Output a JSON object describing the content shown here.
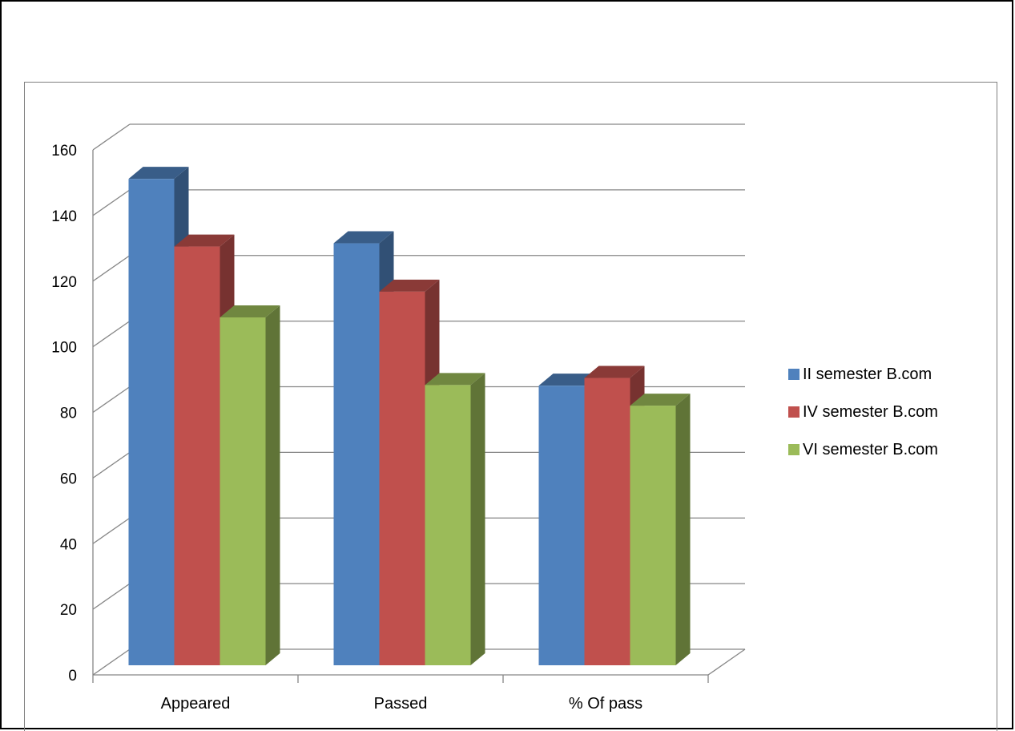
{
  "chart_data": {
    "type": "bar",
    "title": "",
    "xlabel": "",
    "ylabel": "",
    "ylim": [
      0,
      160
    ],
    "yticks": [
      0,
      20,
      40,
      60,
      80,
      100,
      120,
      140,
      160
    ],
    "categories": [
      "Appeared",
      "Passed",
      "% Of pass"
    ],
    "series": [
      {
        "name": "II semester B.com",
        "values": [
          151,
          131,
          86.8
        ],
        "color": "#4F81BD"
      },
      {
        "name": "IV semester B.com",
        "values": [
          130,
          116,
          89.2
        ],
        "color": "#C0504D"
      },
      {
        "name": "VI semester B.com",
        "values": [
          108,
          87,
          80.6
        ],
        "color": "#9BBB59"
      }
    ],
    "grid": true,
    "legend_position": "right",
    "style": "3d-clustered-column"
  }
}
